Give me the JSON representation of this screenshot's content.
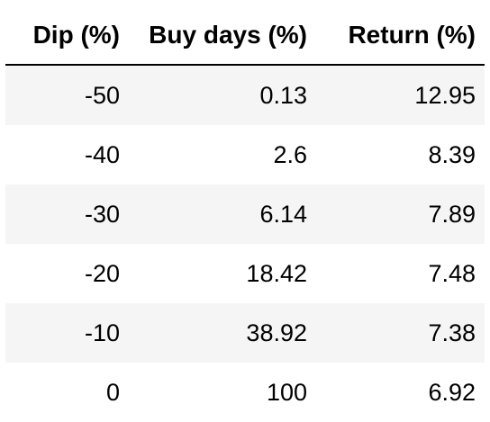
{
  "table": {
    "headers": [
      "Dip (%)",
      "Buy days (%)",
      "Return (%)"
    ],
    "rows": [
      [
        "-50",
        "0.13",
        "12.95"
      ],
      [
        "-40",
        "2.6",
        "8.39"
      ],
      [
        "-30",
        "6.14",
        "7.89"
      ],
      [
        "-20",
        "18.42",
        "7.48"
      ],
      [
        "-10",
        "38.92",
        "7.38"
      ],
      [
        "0",
        "100",
        "6.92"
      ]
    ]
  },
  "colors": {
    "stripe": "#f5f5f5",
    "background": "#ffffff",
    "text": "#000000"
  }
}
